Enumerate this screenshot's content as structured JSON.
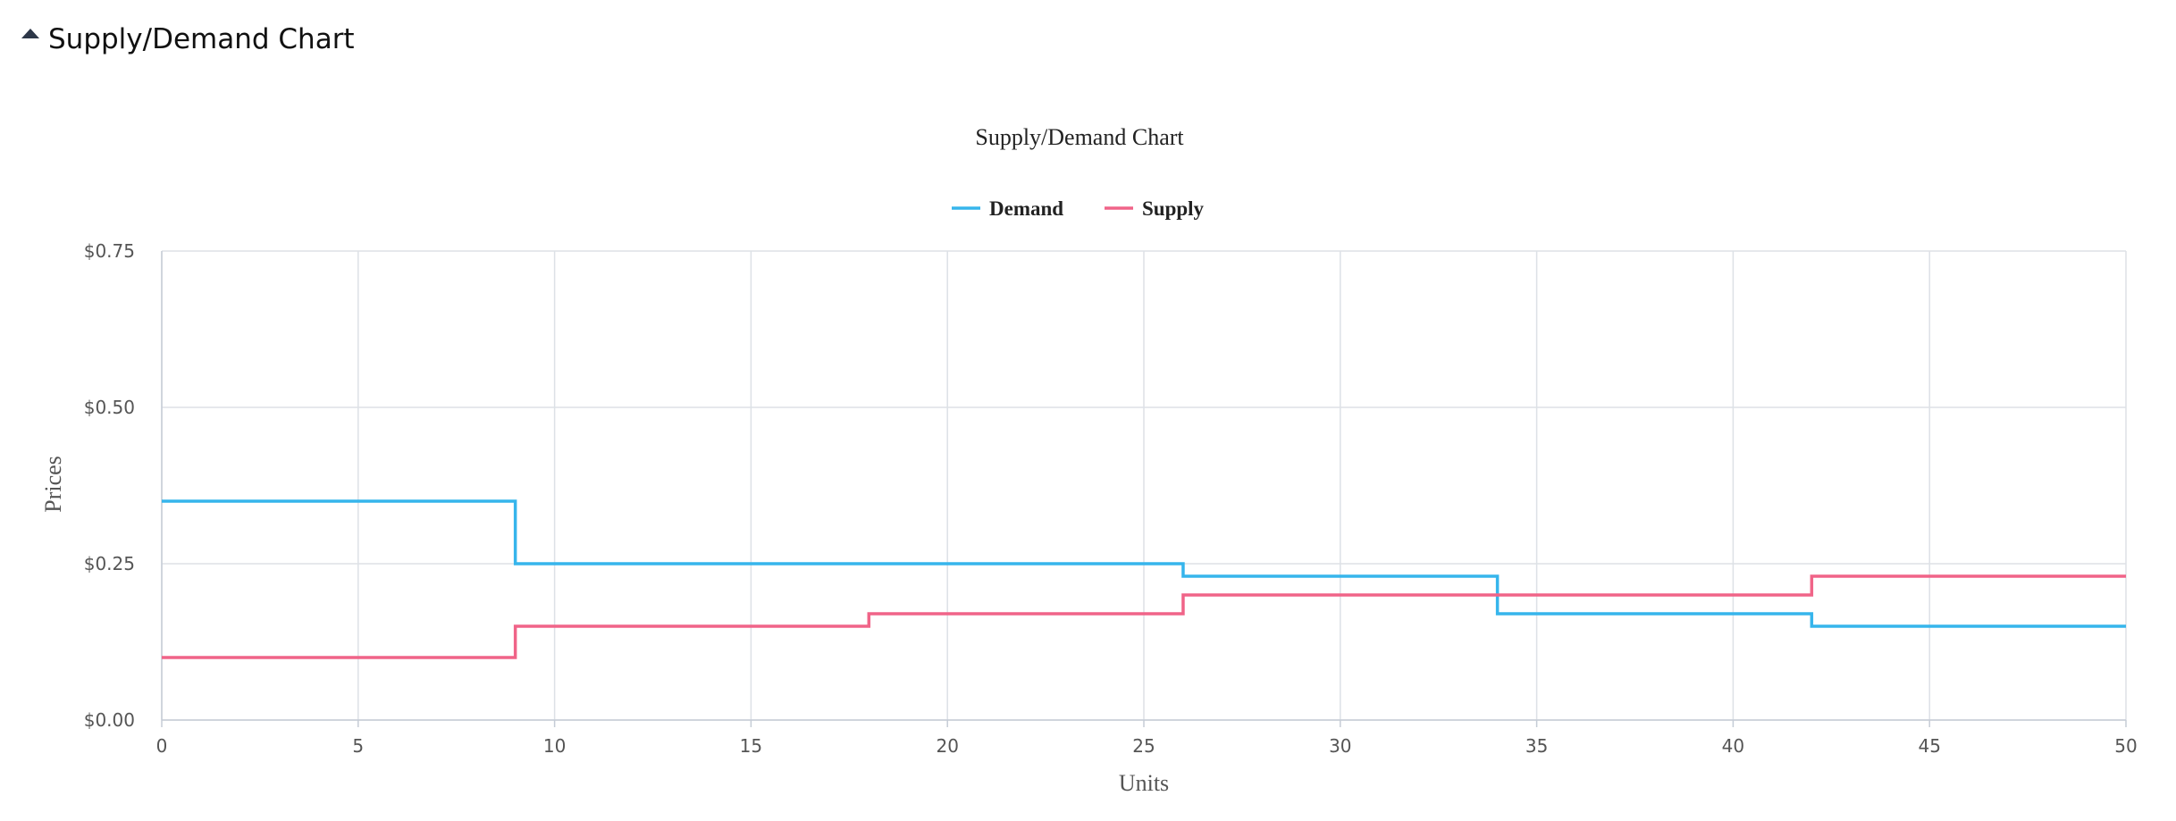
{
  "panel": {
    "title": "Supply/Demand Chart",
    "toggle_icon": "caret-up-icon"
  },
  "chart_data": {
    "type": "line",
    "step": true,
    "title": "Supply/Demand Chart",
    "xlabel": "Units",
    "ylabel": "Prices",
    "xlim": [
      0,
      50
    ],
    "ylim": [
      0,
      0.75
    ],
    "x_ticks": [
      0,
      5,
      10,
      15,
      20,
      25,
      30,
      35,
      40,
      45,
      50
    ],
    "x_tick_labels": [
      "0",
      "5",
      "10",
      "15",
      "20",
      "25",
      "30",
      "35",
      "40",
      "45",
      "50"
    ],
    "y_ticks": [
      0,
      0.25,
      0.5,
      0.75
    ],
    "y_tick_labels": [
      "$0.00",
      "$0.25",
      "$0.50",
      "$0.75"
    ],
    "grid": true,
    "legend_position": "top-center",
    "series": [
      {
        "name": "Demand",
        "color": "#36b5ec",
        "x": [
          0,
          9,
          9,
          26,
          26,
          34,
          34,
          42,
          42,
          50
        ],
        "y": [
          0.35,
          0.35,
          0.25,
          0.25,
          0.23,
          0.23,
          0.17,
          0.17,
          0.15,
          0.15
        ]
      },
      {
        "name": "Supply",
        "color": "#f06488",
        "x": [
          0,
          9,
          9,
          18,
          18,
          26,
          26,
          42,
          42,
          50
        ],
        "y": [
          0.1,
          0.1,
          0.15,
          0.15,
          0.17,
          0.17,
          0.2,
          0.2,
          0.23,
          0.23
        ]
      }
    ]
  }
}
